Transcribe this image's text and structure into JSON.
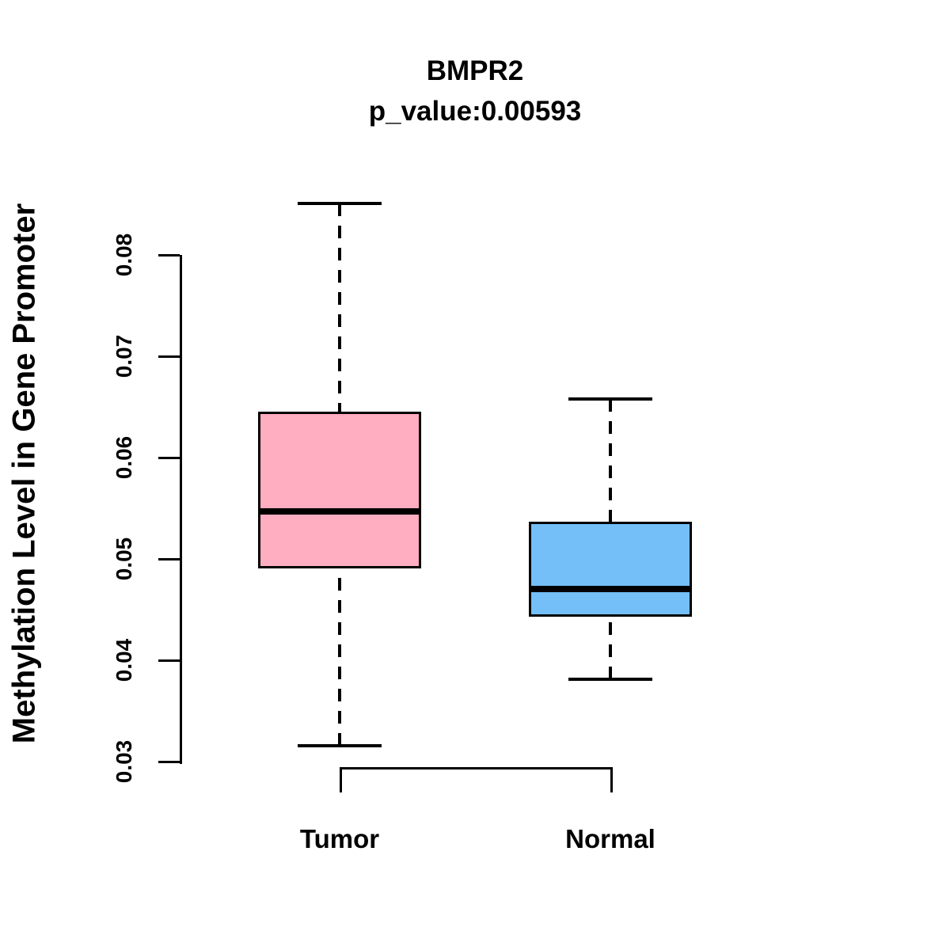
{
  "chart_data": {
    "type": "boxplot",
    "title": "BMPR2",
    "subtitle": "p_value:0.00593",
    "ylabel": "Methylation Level in Gene Promoter",
    "xlabel": "",
    "ylim": [
      0.03,
      0.08
    ],
    "yticks": [
      "0.03",
      "0.04",
      "0.05",
      "0.06",
      "0.07",
      "0.08"
    ],
    "grid": "off",
    "legend": "none",
    "categories": [
      "Tumor",
      "Normal"
    ],
    "groups": [
      {
        "label": "Tumor",
        "fill_color": "#FFADC0",
        "whisker_low": 0.0316,
        "q1": 0.0491,
        "median": 0.0547,
        "q3": 0.0645,
        "whisker_high": 0.0851
      },
      {
        "label": "Normal",
        "fill_color": "#74BFF8",
        "whisker_low": 0.0381,
        "q1": 0.0443,
        "median": 0.047,
        "q3": 0.0537,
        "whisker_high": 0.0658
      }
    ],
    "colors": {
      "line": "#000000",
      "background": "#ffffff"
    }
  }
}
